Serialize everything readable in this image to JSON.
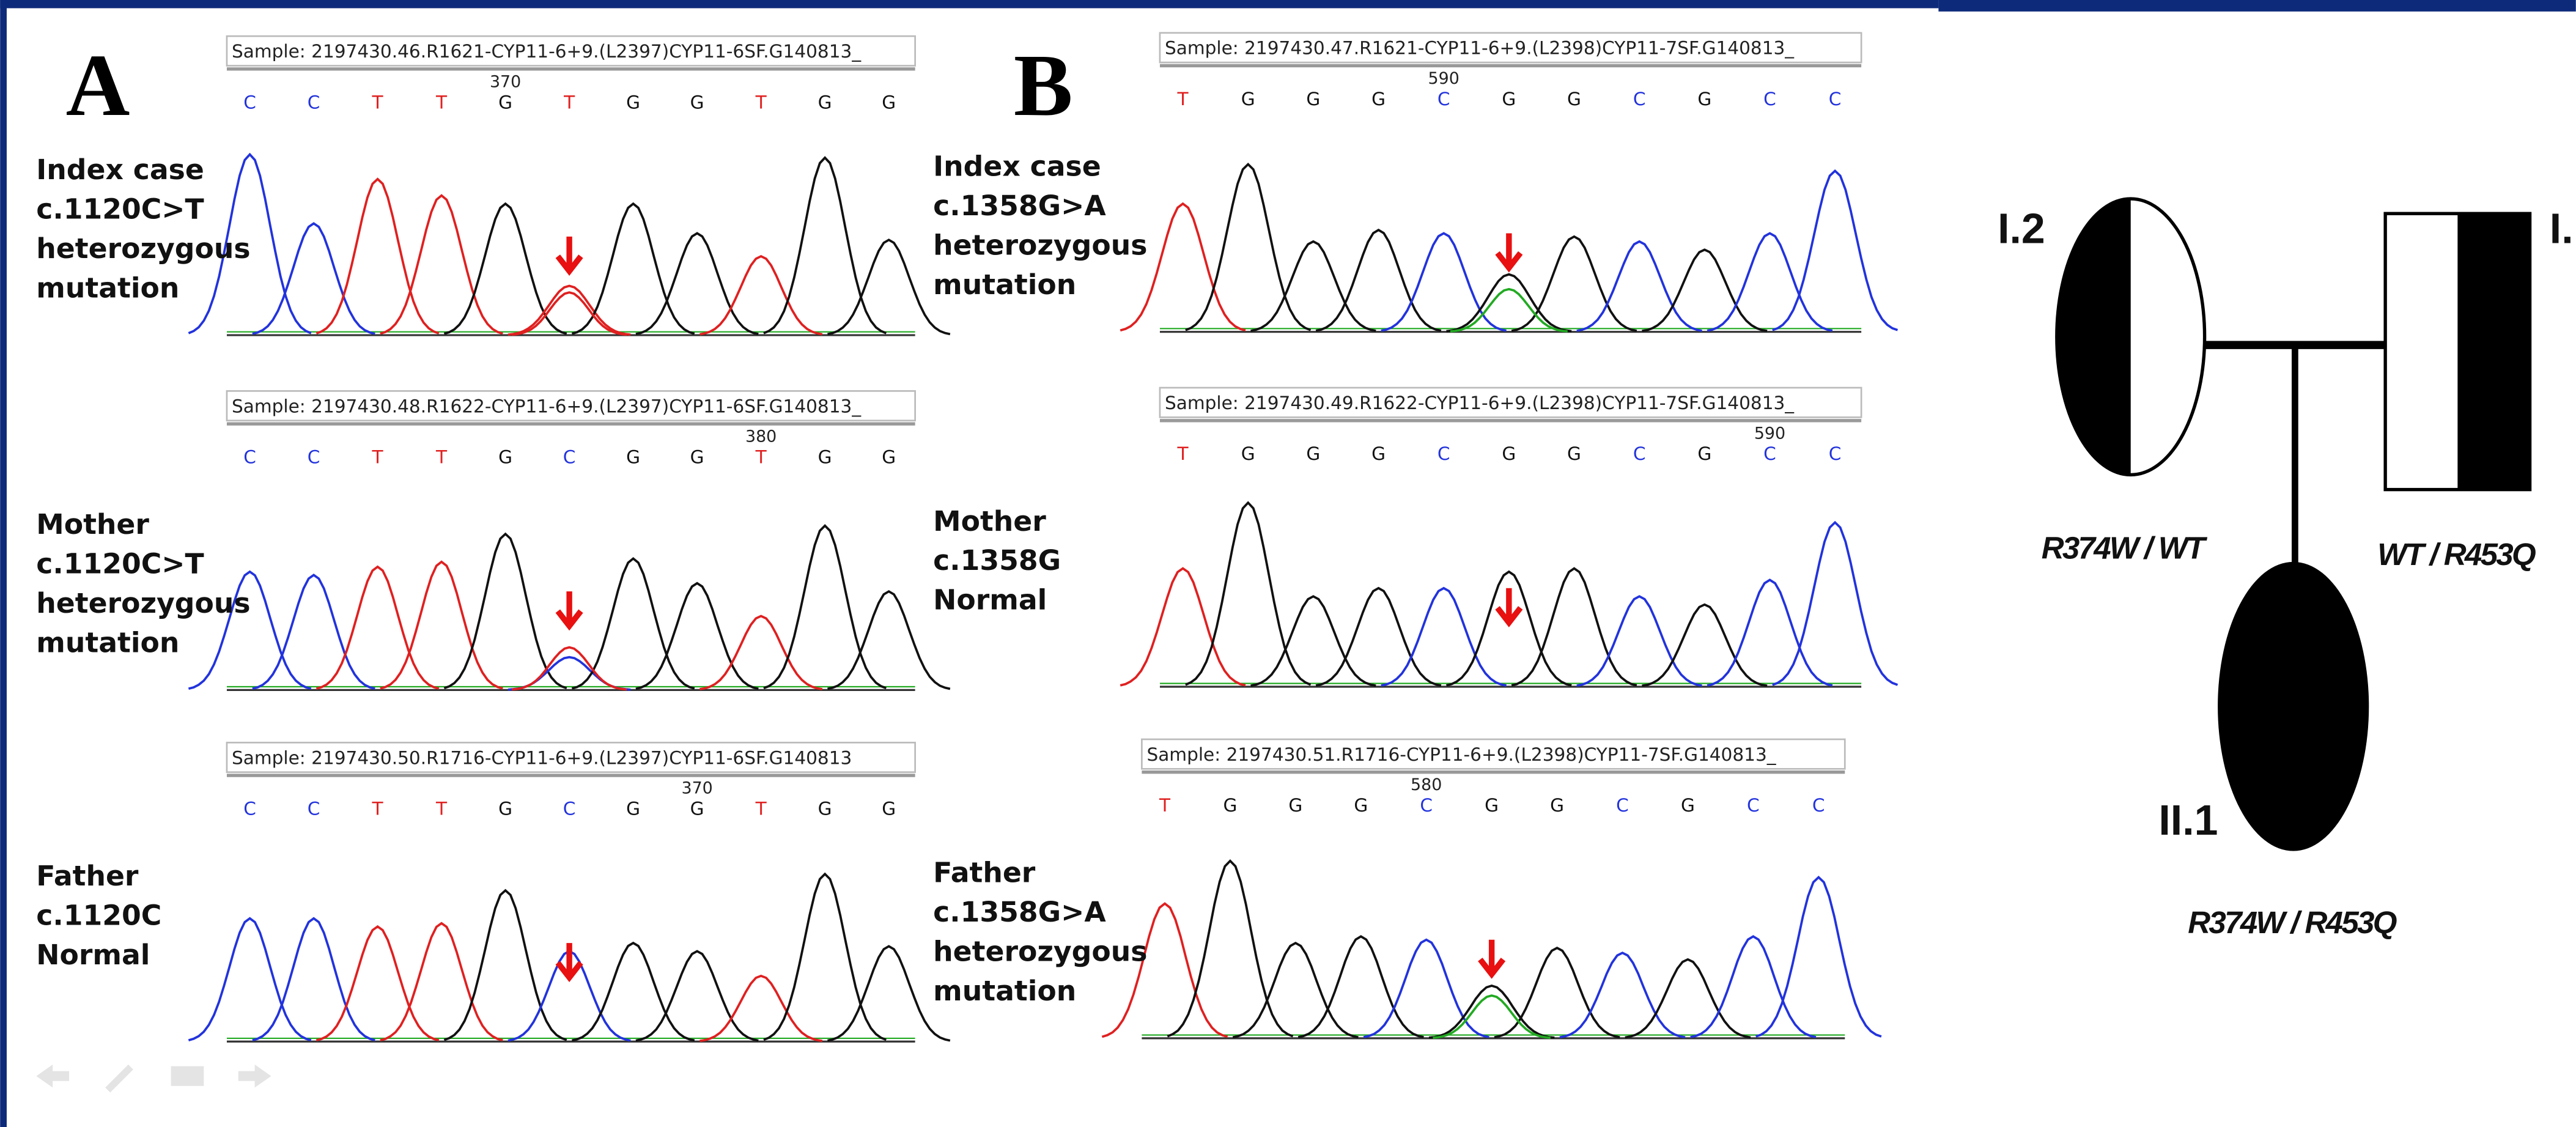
{
  "panels": [
    {
      "letter": "A",
      "rows": [
        {
          "sample": "Sample: 2197430.46.R1621-CYP11-6+9.(L2397)CYP11-6SF.G140813_",
          "position": "370",
          "bases": [
            "C",
            "C",
            "T",
            "T",
            "G",
            "T",
            "G",
            "G",
            "T",
            "G",
            "G"
          ],
          "label": [
            "Index case",
            "c.1120C>T",
            "heterozygous",
            "mutation"
          ]
        },
        {
          "sample": "Sample: 2197430.48.R1622-CYP11-6+9.(L2397)CYP11-6SF.G140813_",
          "position": "380",
          "bases": [
            "C",
            "C",
            "T",
            "T",
            "G",
            "C",
            "G",
            "G",
            "T",
            "G",
            "G"
          ],
          "label": [
            "Mother",
            "c.1120C>T",
            "heterozygous",
            "mutation"
          ]
        },
        {
          "sample": "Sample: 2197430.50.R1716-CYP11-6+9.(L2397)CYP11-6SF.G140813",
          "position": "370",
          "bases": [
            "C",
            "C",
            "T",
            "T",
            "G",
            "C",
            "G",
            "G",
            "T",
            "G",
            "G"
          ],
          "label": [
            "Father",
            "c.1120C",
            "Normal"
          ]
        }
      ]
    },
    {
      "letter": "B",
      "rows": [
        {
          "sample": "Sample: 2197430.47.R1621-CYP11-6+9.(L2398)CYP11-7SF.G140813_",
          "position": "590",
          "bases": [
            "T",
            "G",
            "G",
            "G",
            "C",
            "G",
            "G",
            "C",
            "G",
            "C",
            "C"
          ],
          "label": [
            "Index case",
            "c.1358G>A",
            "heterozygous",
            "mutation"
          ]
        },
        {
          "sample": "Sample: 2197430.49.R1622-CYP11-6+9.(L2398)CYP11-7SF.G140813_",
          "position": "590",
          "bases": [
            "T",
            "G",
            "G",
            "G",
            "C",
            "G",
            "G",
            "C",
            "G",
            "C",
            "C"
          ],
          "label": [
            "Mother",
            "c.1358G",
            "Normal"
          ]
        },
        {
          "sample": "Sample: 2197430.51.R1716-CYP11-6+9.(L2398)CYP11-7SF.G140813_",
          "position": "580",
          "bases": [
            "T",
            "G",
            "G",
            "G",
            "C",
            "G",
            "G",
            "C",
            "G",
            "C",
            "C"
          ],
          "label": [
            "Father",
            "c.1358G>A",
            "heterozygous",
            "mutation"
          ]
        }
      ]
    }
  ],
  "pedigree": {
    "mother_id": "I.2",
    "father_id": "I.",
    "child_id": "II.1",
    "mother_genotype": "R374W / WT",
    "father_genotype": "WT / R453Q",
    "child_genotype": "R374W / R453Q"
  }
}
